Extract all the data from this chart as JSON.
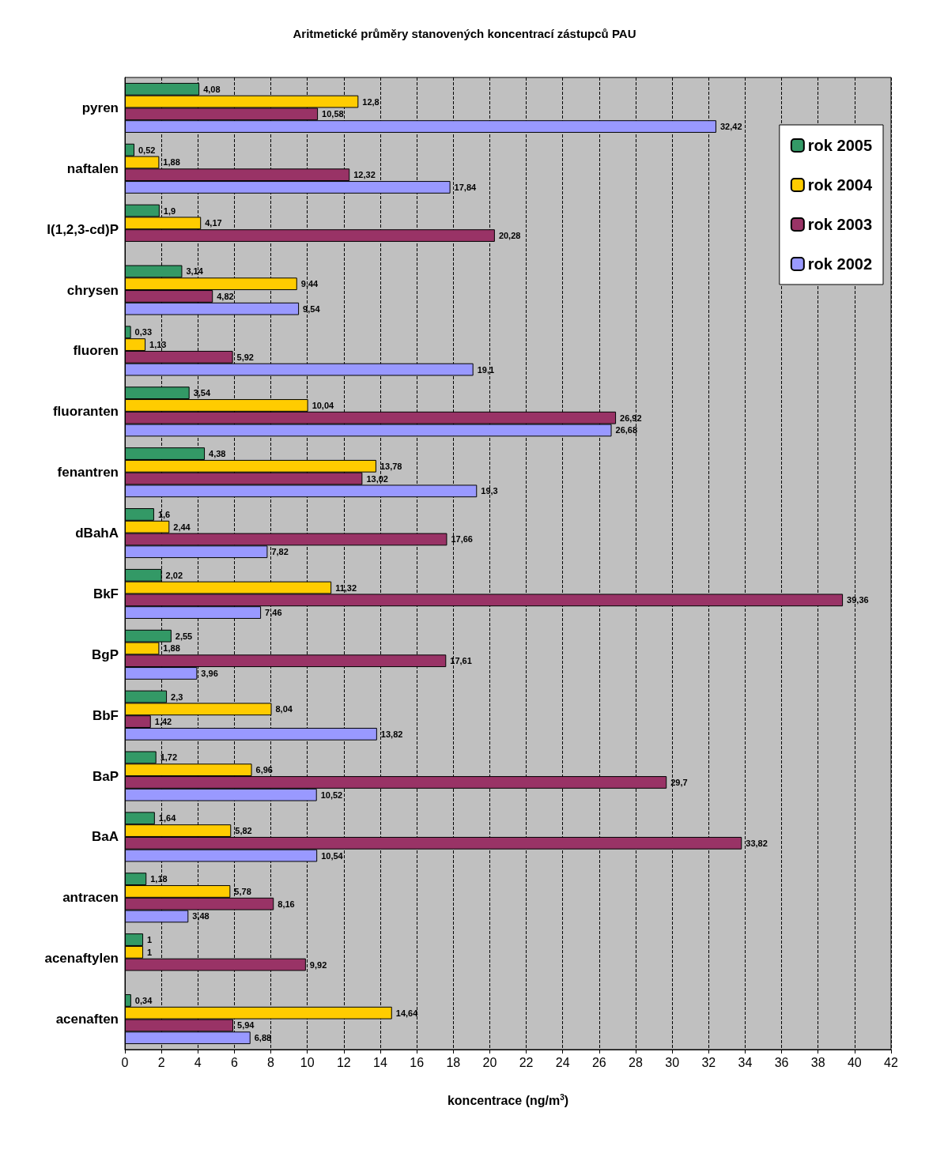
{
  "chart_data": {
    "type": "bar",
    "orientation": "horizontal",
    "title": "Aritmetické průměry stanovených koncentrací zástupců PAU",
    "xlabel": "koncentrace (ng/m$^{3}$)",
    "categories": [
      "pyren",
      "naftalen",
      "I(1,2,3-cd)P",
      "chrysen",
      "fluoren",
      "fluoranten",
      "fenantren",
      "dBahA",
      "BkF",
      "BgP",
      "BbF",
      "BaP",
      "BaA",
      "antracen",
      "acenaftylen",
      "acenaften"
    ],
    "series": [
      {
        "name": "rok 2005",
        "color": "#339966",
        "values": [
          4.08,
          0.52,
          1.9,
          3.14,
          0.33,
          3.54,
          4.38,
          1.6,
          2.02,
          2.55,
          2.3,
          1.72,
          1.64,
          1.18,
          1,
          0.34
        ],
        "value_labels": [
          "4,08",
          "0,52",
          "1,9",
          "3,14",
          "0,33",
          "3,54",
          "4,38",
          "1,6",
          "2,02",
          "2,55",
          "2,3",
          "1,72",
          "1,64",
          "1,18",
          "1",
          "0,34"
        ]
      },
      {
        "name": "rok 2004",
        "color": "#ffcc00",
        "values": [
          12.8,
          1.88,
          4.17,
          9.44,
          1.13,
          10.04,
          13.78,
          2.44,
          11.32,
          1.88,
          8.04,
          6.96,
          5.82,
          5.78,
          1,
          14.64
        ],
        "value_labels": [
          "12,8",
          "1,88",
          "4,17",
          "9,44",
          "1,13",
          "10,04",
          "13,78",
          "2,44",
          "11,32",
          "1,88",
          "8,04",
          "6,96",
          "5,82",
          "5,78",
          "1",
          "14,64"
        ]
      },
      {
        "name": "rok 2003",
        "color": "#993366",
        "values": [
          10.58,
          12.32,
          20.28,
          4.82,
          5.92,
          26.92,
          13.02,
          17.66,
          39.36,
          17.61,
          1.42,
          29.7,
          33.82,
          8.16,
          9.92,
          5.94
        ],
        "value_labels": [
          "10,58",
          "12,32",
          "20,28",
          "4,82",
          "5,92",
          "26,92",
          "13,02",
          "17,66",
          "39,36",
          "17,61",
          "1,42",
          "29,7",
          "33,82",
          "8,16",
          "9,92",
          "5,94"
        ]
      },
      {
        "name": "rok 2002",
        "color": "#9999ff",
        "values": [
          32.42,
          17.84,
          null,
          9.54,
          19.1,
          26.68,
          19.3,
          7.82,
          7.46,
          3.96,
          13.82,
          10.52,
          10.54,
          3.48,
          null,
          6.88
        ],
        "value_labels": [
          "32,42",
          "17,84",
          null,
          "9,54",
          "19,1",
          "26,68",
          "19,3",
          "7,82",
          "7,46",
          "3,96",
          "13,82",
          "10,52",
          "10,54",
          "3,48",
          null,
          "6,88"
        ]
      }
    ],
    "xlim": [
      0,
      42
    ],
    "xticks": [
      0,
      2,
      4,
      6,
      8,
      10,
      12,
      14,
      16,
      18,
      20,
      22,
      24,
      26,
      28,
      30,
      32,
      34,
      36,
      38,
      40,
      42
    ],
    "grid": "x",
    "legend": "top right"
  }
}
